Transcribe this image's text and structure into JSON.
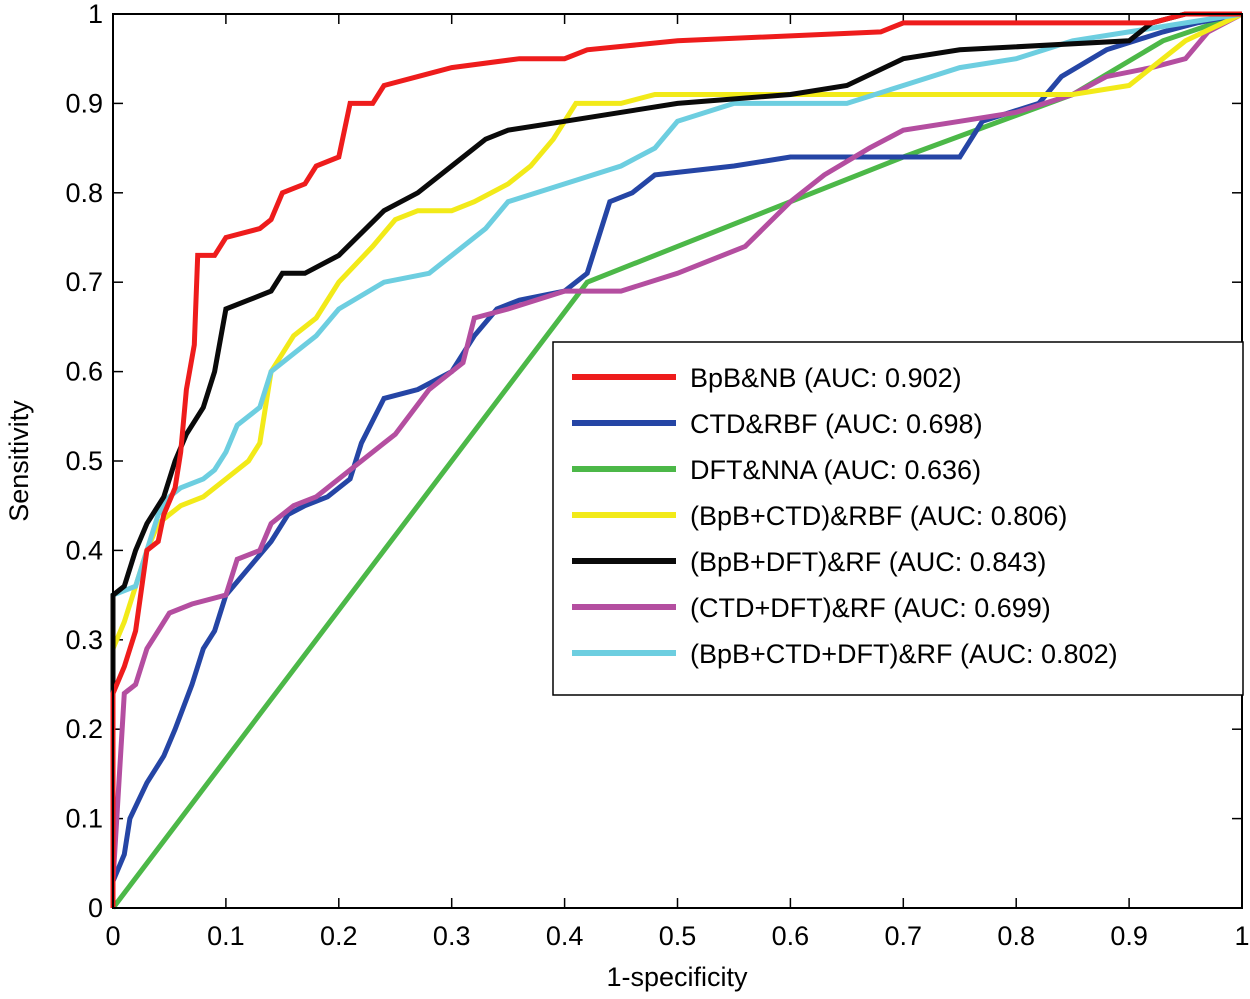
{
  "chart_data": {
    "type": "line",
    "title": "",
    "xlabel": "1-specificity",
    "ylabel": "Sensitivity",
    "xlim": [
      0,
      1
    ],
    "ylim": [
      0,
      1
    ],
    "xticks": [
      "0",
      "0.1",
      "0.2",
      "0.3",
      "0.4",
      "0.5",
      "0.6",
      "0.7",
      "0.8",
      "0.9",
      "1"
    ],
    "yticks": [
      "0",
      "0.1",
      "0.2",
      "0.3",
      "0.4",
      "0.5",
      "0.6",
      "0.7",
      "0.8",
      "0.9",
      "1"
    ],
    "grid": false,
    "legend_position": "center-right",
    "series": [
      {
        "name": "BpB&NB (AUC: 0.902)",
        "color": "#ee1c1c",
        "points": [
          [
            0,
            0
          ],
          [
            0,
            0.24
          ],
          [
            0.01,
            0.27
          ],
          [
            0.02,
            0.31
          ],
          [
            0.03,
            0.4
          ],
          [
            0.04,
            0.41
          ],
          [
            0.045,
            0.44
          ],
          [
            0.055,
            0.47
          ],
          [
            0.06,
            0.51
          ],
          [
            0.065,
            0.58
          ],
          [
            0.072,
            0.63
          ],
          [
            0.075,
            0.73
          ],
          [
            0.09,
            0.73
          ],
          [
            0.1,
            0.75
          ],
          [
            0.13,
            0.76
          ],
          [
            0.14,
            0.77
          ],
          [
            0.15,
            0.8
          ],
          [
            0.17,
            0.81
          ],
          [
            0.18,
            0.83
          ],
          [
            0.2,
            0.84
          ],
          [
            0.21,
            0.9
          ],
          [
            0.23,
            0.9
          ],
          [
            0.24,
            0.92
          ],
          [
            0.27,
            0.93
          ],
          [
            0.3,
            0.94
          ],
          [
            0.36,
            0.95
          ],
          [
            0.4,
            0.95
          ],
          [
            0.42,
            0.96
          ],
          [
            0.5,
            0.97
          ],
          [
            0.68,
            0.98
          ],
          [
            0.7,
            0.99
          ],
          [
            0.85,
            0.99
          ],
          [
            0.92,
            0.99
          ],
          [
            0.95,
            1.0
          ],
          [
            1.0,
            1.0
          ]
        ]
      },
      {
        "name": "CTD&RBF (AUC: 0.698)",
        "color": "#2545a5",
        "points": [
          [
            0,
            0
          ],
          [
            0,
            0.03
          ],
          [
            0.01,
            0.06
          ],
          [
            0.015,
            0.1
          ],
          [
            0.03,
            0.14
          ],
          [
            0.045,
            0.17
          ],
          [
            0.055,
            0.2
          ],
          [
            0.07,
            0.25
          ],
          [
            0.08,
            0.29
          ],
          [
            0.09,
            0.31
          ],
          [
            0.1,
            0.35
          ],
          [
            0.12,
            0.38
          ],
          [
            0.14,
            0.41
          ],
          [
            0.155,
            0.44
          ],
          [
            0.17,
            0.45
          ],
          [
            0.19,
            0.46
          ],
          [
            0.21,
            0.48
          ],
          [
            0.22,
            0.52
          ],
          [
            0.24,
            0.57
          ],
          [
            0.27,
            0.58
          ],
          [
            0.3,
            0.6
          ],
          [
            0.32,
            0.64
          ],
          [
            0.34,
            0.67
          ],
          [
            0.36,
            0.68
          ],
          [
            0.4,
            0.69
          ],
          [
            0.41,
            0.7
          ],
          [
            0.42,
            0.71
          ],
          [
            0.43,
            0.75
          ],
          [
            0.44,
            0.79
          ],
          [
            0.46,
            0.8
          ],
          [
            0.48,
            0.82
          ],
          [
            0.55,
            0.83
          ],
          [
            0.6,
            0.84
          ],
          [
            0.65,
            0.84
          ],
          [
            0.75,
            0.84
          ],
          [
            0.77,
            0.88
          ],
          [
            0.82,
            0.9
          ],
          [
            0.84,
            0.93
          ],
          [
            0.88,
            0.96
          ],
          [
            0.93,
            0.98
          ],
          [
            0.96,
            0.99
          ],
          [
            1.0,
            1.0
          ]
        ]
      },
      {
        "name": "DFT&NNA (AUC: 0.636)",
        "color": "#4cb848",
        "points": [
          [
            0,
            0
          ],
          [
            0.42,
            0.7
          ],
          [
            0.7,
            0.84
          ],
          [
            0.85,
            0.91
          ],
          [
            0.93,
            0.97
          ],
          [
            1.0,
            1.0
          ]
        ]
      },
      {
        "name": "(BpB+CTD)&RBF (AUC: 0.806)",
        "color": "#f2ea19",
        "points": [
          [
            0,
            0
          ],
          [
            0,
            0.29
          ],
          [
            0.01,
            0.32
          ],
          [
            0.02,
            0.36
          ],
          [
            0.03,
            0.4
          ],
          [
            0.04,
            0.43
          ],
          [
            0.05,
            0.44
          ],
          [
            0.06,
            0.45
          ],
          [
            0.08,
            0.46
          ],
          [
            0.1,
            0.48
          ],
          [
            0.12,
            0.5
          ],
          [
            0.13,
            0.52
          ],
          [
            0.14,
            0.6
          ],
          [
            0.16,
            0.64
          ],
          [
            0.18,
            0.66
          ],
          [
            0.2,
            0.7
          ],
          [
            0.23,
            0.74
          ],
          [
            0.25,
            0.77
          ],
          [
            0.27,
            0.78
          ],
          [
            0.3,
            0.78
          ],
          [
            0.32,
            0.79
          ],
          [
            0.35,
            0.81
          ],
          [
            0.37,
            0.83
          ],
          [
            0.39,
            0.86
          ],
          [
            0.41,
            0.9
          ],
          [
            0.45,
            0.9
          ],
          [
            0.48,
            0.91
          ],
          [
            0.6,
            0.91
          ],
          [
            0.7,
            0.91
          ],
          [
            0.8,
            0.91
          ],
          [
            0.85,
            0.91
          ],
          [
            0.9,
            0.92
          ],
          [
            0.95,
            0.97
          ],
          [
            1.0,
            1.0
          ]
        ]
      },
      {
        "name": "(BpB+DFT)&RF (AUC: 0.843)",
        "color": "#0a0a0a",
        "points": [
          [
            0,
            0
          ],
          [
            0,
            0.35
          ],
          [
            0.01,
            0.36
          ],
          [
            0.02,
            0.4
          ],
          [
            0.03,
            0.43
          ],
          [
            0.045,
            0.46
          ],
          [
            0.055,
            0.5
          ],
          [
            0.065,
            0.53
          ],
          [
            0.08,
            0.56
          ],
          [
            0.09,
            0.6
          ],
          [
            0.1,
            0.67
          ],
          [
            0.12,
            0.68
          ],
          [
            0.14,
            0.69
          ],
          [
            0.15,
            0.71
          ],
          [
            0.17,
            0.71
          ],
          [
            0.2,
            0.73
          ],
          [
            0.24,
            0.78
          ],
          [
            0.27,
            0.8
          ],
          [
            0.3,
            0.83
          ],
          [
            0.33,
            0.86
          ],
          [
            0.35,
            0.87
          ],
          [
            0.4,
            0.88
          ],
          [
            0.5,
            0.9
          ],
          [
            0.6,
            0.91
          ],
          [
            0.65,
            0.92
          ],
          [
            0.7,
            0.95
          ],
          [
            0.75,
            0.96
          ],
          [
            0.9,
            0.97
          ],
          [
            0.92,
            0.99
          ],
          [
            0.95,
            1.0
          ],
          [
            1.0,
            1.0
          ]
        ]
      },
      {
        "name": "(CTD+DFT)&RF (AUC: 0.699)",
        "color": "#b44ea0",
        "points": [
          [
            0,
            0
          ],
          [
            0,
            0.03
          ],
          [
            0.01,
            0.24
          ],
          [
            0.02,
            0.25
          ],
          [
            0.03,
            0.29
          ],
          [
            0.04,
            0.31
          ],
          [
            0.05,
            0.33
          ],
          [
            0.07,
            0.34
          ],
          [
            0.1,
            0.35
          ],
          [
            0.11,
            0.39
          ],
          [
            0.13,
            0.4
          ],
          [
            0.14,
            0.43
          ],
          [
            0.16,
            0.45
          ],
          [
            0.18,
            0.46
          ],
          [
            0.21,
            0.49
          ],
          [
            0.25,
            0.53
          ],
          [
            0.28,
            0.58
          ],
          [
            0.31,
            0.61
          ],
          [
            0.32,
            0.66
          ],
          [
            0.35,
            0.67
          ],
          [
            0.4,
            0.69
          ],
          [
            0.45,
            0.69
          ],
          [
            0.5,
            0.71
          ],
          [
            0.56,
            0.74
          ],
          [
            0.6,
            0.79
          ],
          [
            0.63,
            0.82
          ],
          [
            0.67,
            0.85
          ],
          [
            0.7,
            0.87
          ],
          [
            0.75,
            0.88
          ],
          [
            0.8,
            0.89
          ],
          [
            0.85,
            0.91
          ],
          [
            0.88,
            0.93
          ],
          [
            0.92,
            0.94
          ],
          [
            0.95,
            0.95
          ],
          [
            0.97,
            0.98
          ],
          [
            1.0,
            1.0
          ]
        ]
      },
      {
        "name": "(BpB+CTD+DFT)&RF (AUC: 0.802)",
        "color": "#6dcee0",
        "points": [
          [
            0,
            0
          ],
          [
            0,
            0.35
          ],
          [
            0.02,
            0.36
          ],
          [
            0.03,
            0.4
          ],
          [
            0.04,
            0.44
          ],
          [
            0.05,
            0.46
          ],
          [
            0.06,
            0.47
          ],
          [
            0.08,
            0.48
          ],
          [
            0.09,
            0.49
          ],
          [
            0.1,
            0.51
          ],
          [
            0.11,
            0.54
          ],
          [
            0.13,
            0.56
          ],
          [
            0.14,
            0.6
          ],
          [
            0.16,
            0.62
          ],
          [
            0.18,
            0.64
          ],
          [
            0.2,
            0.67
          ],
          [
            0.24,
            0.7
          ],
          [
            0.28,
            0.71
          ],
          [
            0.3,
            0.73
          ],
          [
            0.33,
            0.76
          ],
          [
            0.35,
            0.79
          ],
          [
            0.4,
            0.81
          ],
          [
            0.45,
            0.83
          ],
          [
            0.48,
            0.85
          ],
          [
            0.5,
            0.88
          ],
          [
            0.55,
            0.9
          ],
          [
            0.6,
            0.9
          ],
          [
            0.65,
            0.9
          ],
          [
            0.7,
            0.92
          ],
          [
            0.75,
            0.94
          ],
          [
            0.8,
            0.95
          ],
          [
            0.85,
            0.97
          ],
          [
            0.9,
            0.98
          ],
          [
            0.95,
            0.99
          ],
          [
            1.0,
            1.0
          ]
        ]
      }
    ]
  }
}
